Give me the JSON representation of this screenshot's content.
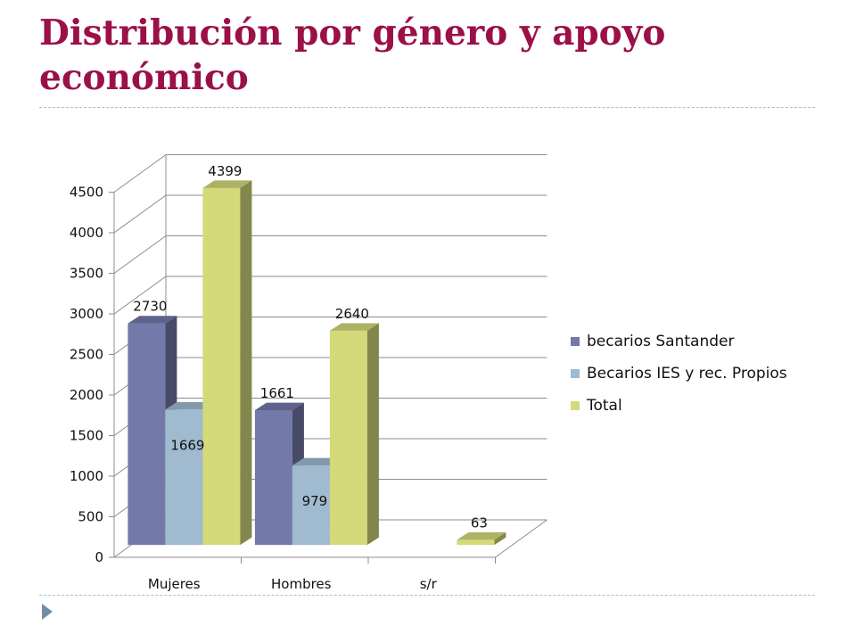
{
  "slide": {
    "title": "Distribución por género y apoyo económico"
  },
  "colors": {
    "title": "#9b1048",
    "divider": "#a9bfcc",
    "bullet": "#6f8fa8"
  },
  "icons": {
    "bullet": "triangle-bullet-icon"
  },
  "chart_data": {
    "type": "bar",
    "style": "3d-clustered-column",
    "categories": [
      "Mujeres",
      "Hombres",
      "s/r"
    ],
    "series": [
      {
        "name": "becarios Santander",
        "values": [
          2730,
          1661,
          null
        ],
        "color": "#7379a9"
      },
      {
        "name": "Becarios IES y rec. Propios",
        "values": [
          1669,
          979,
          null
        ],
        "color": "#a0bacf"
      },
      {
        "name": "Total",
        "values": [
          4399,
          2640,
          63
        ],
        "color": "#d4d97a"
      }
    ],
    "yticks": [
      0,
      500,
      1000,
      1500,
      2000,
      2500,
      3000,
      3500,
      4000,
      4500
    ],
    "ylim": [
      0,
      4500
    ],
    "grid": true,
    "legend_position": "right",
    "title": "",
    "xlabel": "",
    "ylabel": ""
  }
}
